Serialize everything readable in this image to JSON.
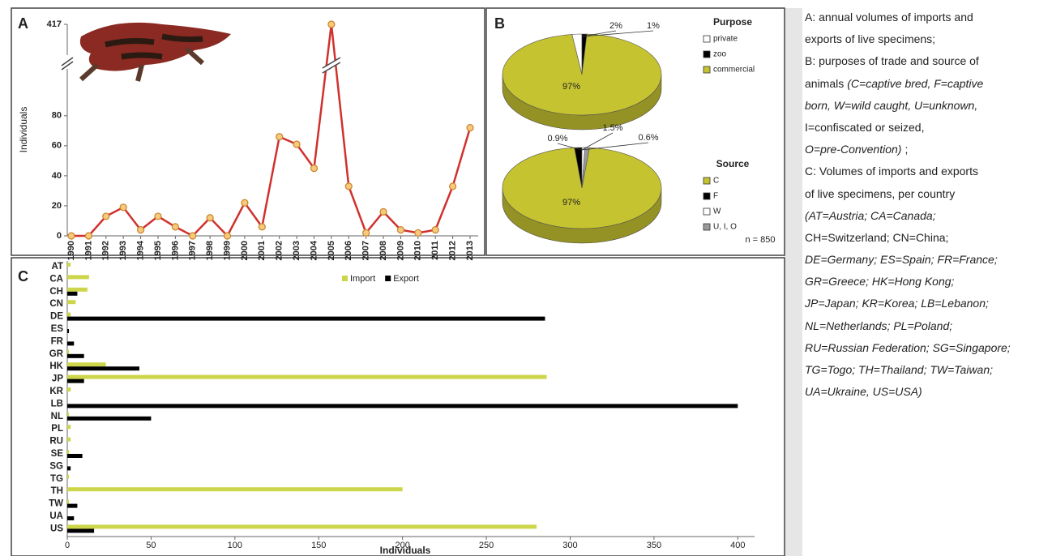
{
  "chart_data": [
    {
      "type": "line",
      "title": "A",
      "ylabel": "Individuals",
      "x": [
        1990,
        1991,
        1992,
        1993,
        1994,
        1995,
        1996,
        1997,
        1998,
        1999,
        2000,
        2001,
        2002,
        2003,
        2004,
        2005,
        2006,
        2007,
        2008,
        2009,
        2010,
        2011,
        2012,
        2013
      ],
      "values": [
        0,
        0,
        13,
        19,
        4,
        13,
        6,
        0,
        12,
        0,
        22,
        6,
        66,
        61,
        45,
        417,
        33,
        2,
        16,
        4,
        2,
        4,
        33,
        72
      ],
      "color": "#d0312d",
      "marker_color": "#f6c97c",
      "xlim": [
        1990,
        2013
      ],
      "ylim": [
        0,
        417
      ],
      "axis_break": [
        95,
        410
      ],
      "yticks": [
        0,
        20,
        40,
        60,
        80,
        417
      ],
      "grid": false
    },
    {
      "type": "pie",
      "title": "B",
      "legend_title": "Purpose",
      "categories": [
        "private",
        "zoo",
        "commercial"
      ],
      "values": [
        2,
        1,
        97
      ],
      "value_labels": [
        "2%",
        "1%",
        "97%"
      ],
      "colors": [
        "#ffffff",
        "#000000",
        "#c6c330"
      ]
    },
    {
      "type": "pie",
      "legend_title": "Source",
      "categories": [
        "C",
        "F",
        "W",
        "U, I, O"
      ],
      "values": [
        97,
        1.5,
        0.6,
        0.9
      ],
      "value_labels": [
        "97%",
        "1.5%",
        "0.6%",
        "0.9%"
      ],
      "colors": [
        "#c6c330",
        "#000000",
        "#ffffff",
        "#9a9a9a"
      ],
      "annotation": "n = 850"
    },
    {
      "type": "hbar",
      "title": "C",
      "xlabel": "Individuals",
      "categories": [
        "AT",
        "CA",
        "CH",
        "CN",
        "DE",
        "ES",
        "FR",
        "GR",
        "HK",
        "JP",
        "KR",
        "LB",
        "NL",
        "PL",
        "RU",
        "SE",
        "SG",
        "TG",
        "TH",
        "TW",
        "UA",
        "US"
      ],
      "series": [
        {
          "name": "Import",
          "color": "#cdd64a",
          "values": [
            2,
            13,
            12,
            5,
            2,
            0,
            0,
            1,
            23,
            286,
            2,
            0,
            1,
            2,
            2,
            1,
            0,
            1,
            200,
            1,
            0,
            280
          ]
        },
        {
          "name": "Export",
          "color": "#000000",
          "values": [
            0,
            0,
            6,
            0,
            285,
            1,
            4,
            10,
            43,
            10,
            0,
            400,
            50,
            0,
            0,
            9,
            2,
            0,
            0,
            6,
            4,
            16
          ]
        }
      ],
      "xlim": [
        0,
        410
      ],
      "xticks": [
        0,
        50,
        100,
        150,
        200,
        250,
        300,
        350,
        400
      ],
      "legend": "top-center"
    }
  ],
  "caption": {
    "lines": [
      [
        {
          "text": "A: annual volumes of imports and",
          "italic": false
        }
      ],
      [
        {
          "text": "exports of live specimens;",
          "italic": false
        }
      ],
      [
        {
          "text": "B: purposes of trade and source of",
          "italic": false
        }
      ],
      [
        {
          "text": "animals",
          "italic": false
        },
        {
          "text": "(C=captive bred, F=captive",
          "italic": true
        }
      ],
      [
        {
          "text": "born, W=wild caught, U=unknown,",
          "italic": true
        }
      ],
      [
        {
          "text": "I=confiscated or seized,",
          "italic": false
        }
      ],
      [
        {
          "text": "O=pre-Convention)",
          "italic": true
        },
        {
          "text": ";",
          "italic": false
        }
      ],
      [
        {
          "text": "C: Volumes of imports and exports",
          "italic": false
        }
      ],
      [
        {
          "text": "of live specimens, per country",
          "italic": false
        }
      ],
      [
        {
          "text": "(AT=Austria; CA=Canada;",
          "italic": true
        }
      ],
      [
        {
          "text": "CH=Switzerland; CN=China;",
          "italic": false
        }
      ],
      [
        {
          "text": "DE=Germany; ES=Spain; FR=France;",
          "italic": true
        }
      ],
      [
        {
          "text": "GR=Greece; HK=Hong Kong;",
          "italic": true
        }
      ],
      [
        {
          "text": "JP=Japan; KR=Korea; LB=Lebanon;",
          "italic": true
        }
      ],
      [
        {
          "text": "NL=Netherlands; PL=Poland;",
          "italic": true
        }
      ],
      [
        {
          "text": "RU=Russian Federation; SG=Singapore;",
          "italic": true
        }
      ],
      [
        {
          "text": "TG=Togo; TH=Thailand; TW=Taiwan;",
          "italic": true
        }
      ],
      [
        {
          "text": "UA=Ukraine, US=USA)",
          "italic": true
        }
      ]
    ]
  }
}
